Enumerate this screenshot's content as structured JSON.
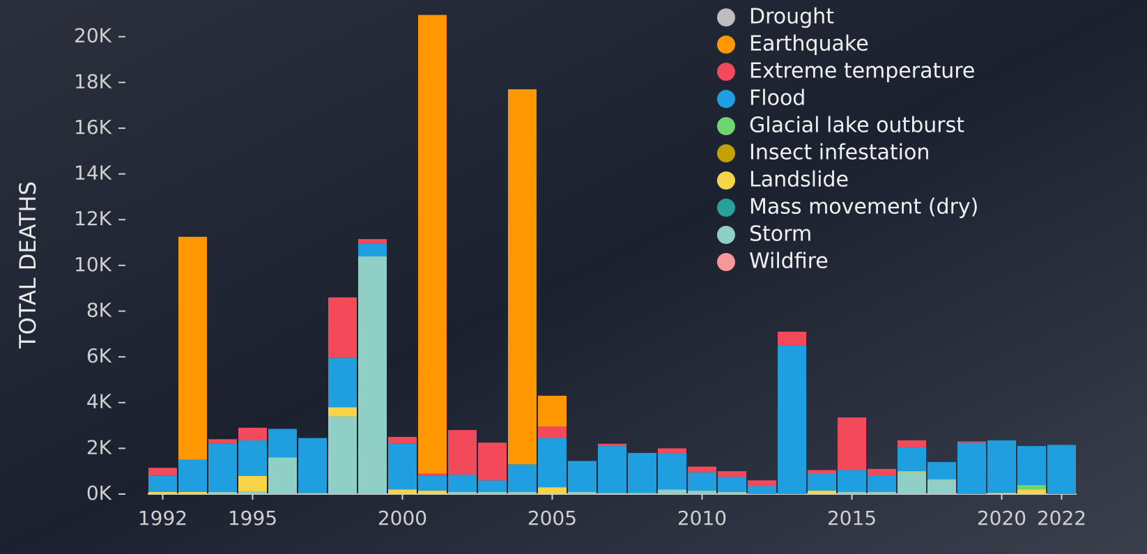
{
  "chart_data": {
    "type": "stacked_bar",
    "ylabel": "TOTAL DEATHS",
    "x": [
      1992,
      1993,
      1994,
      1995,
      1996,
      1997,
      1998,
      1999,
      2000,
      2001,
      2002,
      2003,
      2004,
      2005,
      2006,
      2007,
      2008,
      2009,
      2010,
      2011,
      2012,
      2013,
      2014,
      2015,
      2016,
      2017,
      2018,
      2019,
      2020,
      2021,
      2022
    ],
    "xlim": [
      1991.5,
      2022.5
    ],
    "xticks": [
      1992,
      1995,
      2000,
      2005,
      2010,
      2015,
      2020,
      2022
    ],
    "ylim": [
      0,
      21300
    ],
    "yticks": [
      {
        "value": 0,
        "label": "0K"
      },
      {
        "value": 2000,
        "label": "2K"
      },
      {
        "value": 4000,
        "label": "4K"
      },
      {
        "value": 6000,
        "label": "6K"
      },
      {
        "value": 8000,
        "label": "8K"
      },
      {
        "value": 10000,
        "label": "10K"
      },
      {
        "value": 12000,
        "label": "12K"
      },
      {
        "value": 14000,
        "label": "14K"
      },
      {
        "value": 16000,
        "label": "16K"
      },
      {
        "value": 18000,
        "label": "18K"
      },
      {
        "value": 20000,
        "label": "20K"
      }
    ],
    "series": [
      {
        "name": "Drought",
        "color": "#bdbdbd",
        "values": [
          0,
          0,
          0,
          0,
          0,
          0,
          0,
          0,
          0,
          0,
          0,
          0,
          0,
          0,
          0,
          0,
          0,
          0,
          0,
          0,
          0,
          0,
          0,
          0,
          0,
          0,
          0,
          0,
          0,
          0,
          0
        ]
      },
      {
        "name": "Earthquake",
        "color": "#ff9800",
        "values": [
          0,
          9750,
          0,
          0,
          0,
          0,
          0,
          0,
          0,
          20050,
          0,
          0,
          16400,
          1350,
          0,
          0,
          0,
          0,
          0,
          0,
          0,
          0,
          0,
          0,
          0,
          0,
          0,
          0,
          0,
          0,
          0
        ]
      },
      {
        "name": "Extreme temperature",
        "color": "#f24a5b",
        "values": [
          350,
          0,
          200,
          550,
          0,
          0,
          2650,
          200,
          300,
          100,
          1950,
          1650,
          0,
          500,
          0,
          100,
          0,
          200,
          250,
          250,
          250,
          600,
          150,
          2300,
          300,
          300,
          0,
          50,
          0,
          0,
          0
        ]
      },
      {
        "name": "Flood",
        "color": "#1f9ee0",
        "values": [
          700,
          1400,
          2100,
          1550,
          1250,
          2400,
          2150,
          550,
          2000,
          650,
          750,
          500,
          1200,
          2150,
          1350,
          2050,
          1750,
          1600,
          800,
          650,
          350,
          6500,
          750,
          950,
          700,
          1050,
          750,
          2250,
          2300,
          1700,
          2150
        ]
      },
      {
        "name": "Glacial lake outburst",
        "color": "#6fd66f",
        "values": [
          0,
          0,
          0,
          0,
          0,
          0,
          0,
          0,
          0,
          0,
          0,
          0,
          0,
          0,
          0,
          0,
          0,
          0,
          0,
          0,
          0,
          0,
          0,
          0,
          0,
          0,
          0,
          0,
          0,
          200,
          0
        ]
      },
      {
        "name": "Insect infestation",
        "color": "#c4a000",
        "values": [
          0,
          0,
          0,
          0,
          0,
          0,
          0,
          0,
          0,
          0,
          0,
          0,
          0,
          0,
          0,
          0,
          0,
          0,
          0,
          0,
          0,
          0,
          0,
          0,
          0,
          0,
          0,
          0,
          0,
          0,
          0
        ]
      },
      {
        "name": "Landslide",
        "color": "#f5d547",
        "values": [
          100,
          100,
          0,
          700,
          0,
          0,
          400,
          0,
          200,
          150,
          0,
          0,
          0,
          300,
          0,
          0,
          0,
          0,
          0,
          0,
          0,
          0,
          150,
          0,
          0,
          50,
          0,
          0,
          50,
          200,
          0
        ]
      },
      {
        "name": "Mass movement (dry)",
        "color": "#2aa198",
        "values": [
          0,
          0,
          0,
          0,
          0,
          0,
          0,
          0,
          0,
          0,
          0,
          0,
          0,
          0,
          0,
          0,
          0,
          0,
          0,
          0,
          0,
          0,
          0,
          0,
          0,
          0,
          0,
          0,
          0,
          0,
          0
        ]
      },
      {
        "name": "Storm",
        "color": "#8fcfc6",
        "values": [
          0,
          0,
          100,
          100,
          1600,
          50,
          3400,
          10400,
          0,
          0,
          100,
          100,
          100,
          0,
          100,
          50,
          50,
          200,
          150,
          100,
          0,
          0,
          0,
          100,
          100,
          950,
          650,
          0,
          0,
          0,
          0
        ]
      },
      {
        "name": "Wildfire",
        "color": "#f79797",
        "values": [
          0,
          0,
          0,
          0,
          0,
          0,
          0,
          0,
          0,
          0,
          0,
          0,
          0,
          0,
          0,
          0,
          0,
          0,
          0,
          0,
          0,
          0,
          0,
          0,
          0,
          0,
          0,
          0,
          0,
          0,
          0
        ]
      }
    ]
  }
}
